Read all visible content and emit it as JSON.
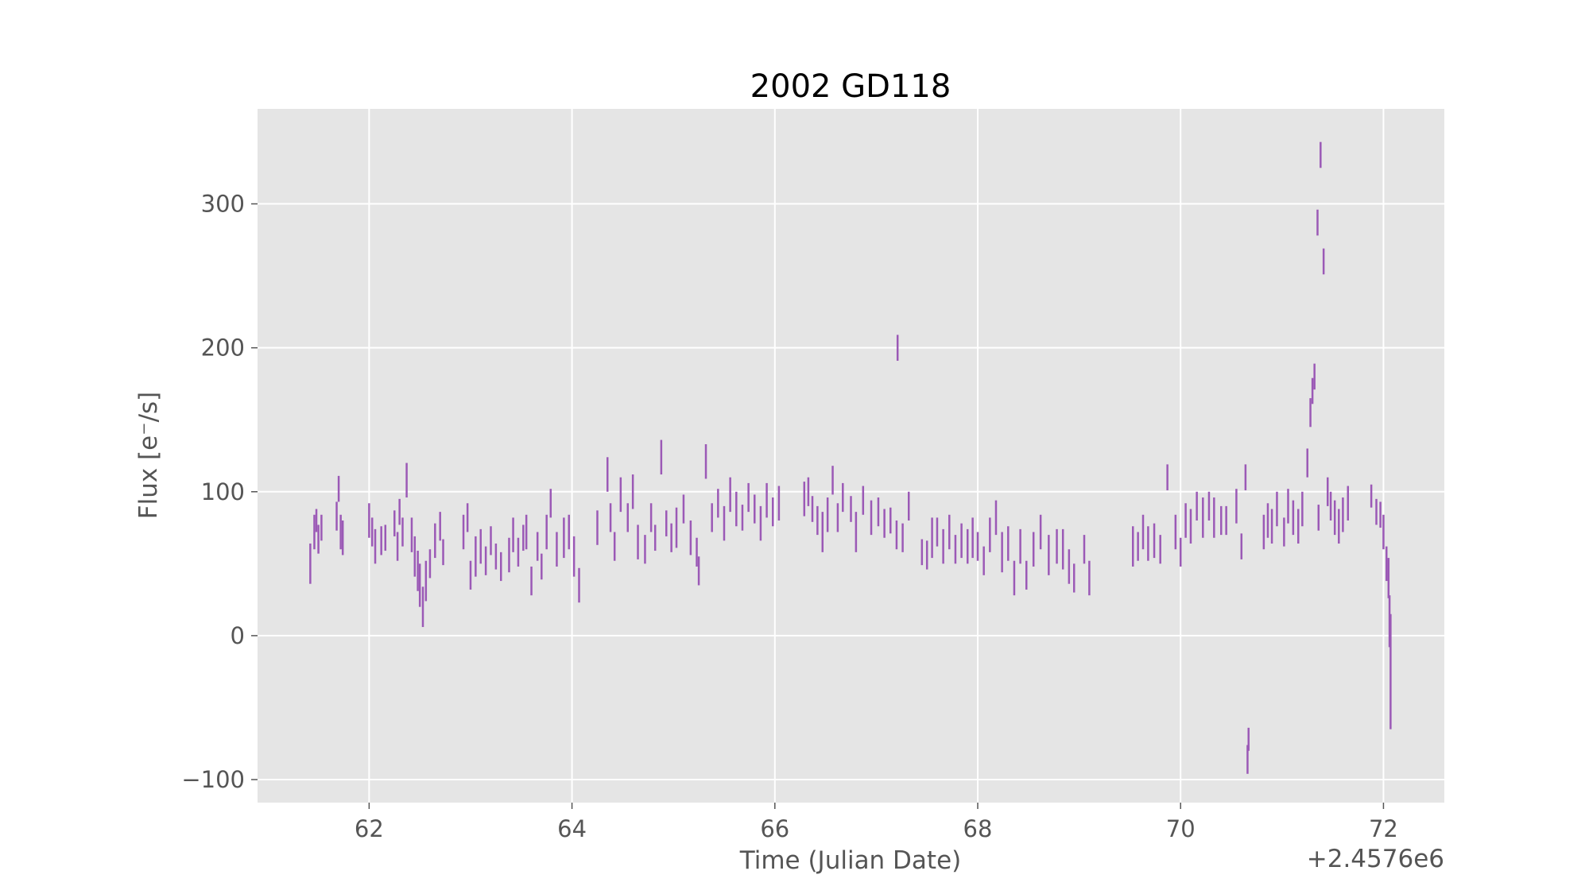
{
  "chart_data": {
    "type": "scatter",
    "title": "2002 GD118",
    "xlabel": "Time (Julian Date)",
    "ylabel": "Flux [e⁻/s]",
    "x_offset_label": "+2.4576e6",
    "x_offset": 2457600,
    "xlim": [
      2457660.9,
      2457672.6
    ],
    "ylim": [
      -116,
      366
    ],
    "xticks": [
      2457662,
      2457664,
      2457666,
      2457668,
      2457670,
      2457672
    ],
    "xtick_labels": [
      "62",
      "64",
      "66",
      "68",
      "70",
      "72"
    ],
    "yticks": [
      -100,
      0,
      100,
      200,
      300
    ],
    "ytick_labels": [
      "−100",
      "0",
      "100",
      "200",
      "300"
    ],
    "grid": true,
    "error_bars": true,
    "series": [
      {
        "color": "#9b59b6",
        "points": [
          [
            2457661.42,
            50,
            14
          ],
          [
            2457661.46,
            72,
            12
          ],
          [
            2457661.48,
            80,
            8
          ],
          [
            2457661.5,
            67,
            10
          ],
          [
            2457661.53,
            75,
            9
          ],
          [
            2457661.68,
            83,
            10
          ],
          [
            2457661.7,
            102,
            9
          ],
          [
            2457661.72,
            72,
            12
          ],
          [
            2457661.74,
            68,
            12
          ],
          [
            2457662.0,
            80,
            12
          ],
          [
            2457662.03,
            72,
            10
          ],
          [
            2457662.06,
            62,
            12
          ],
          [
            2457662.12,
            66,
            10
          ],
          [
            2457662.16,
            68,
            9
          ],
          [
            2457662.25,
            78,
            9
          ],
          [
            2457662.28,
            62,
            10
          ],
          [
            2457662.3,
            86,
            9
          ],
          [
            2457662.33,
            72,
            10
          ],
          [
            2457662.37,
            108,
            12
          ],
          [
            2457662.42,
            70,
            12
          ],
          [
            2457662.45,
            55,
            14
          ],
          [
            2457662.48,
            45,
            14
          ],
          [
            2457662.5,
            35,
            15
          ],
          [
            2457662.53,
            20,
            14
          ],
          [
            2457662.56,
            38,
            14
          ],
          [
            2457662.6,
            50,
            10
          ],
          [
            2457662.65,
            66,
            12
          ],
          [
            2457662.7,
            76,
            10
          ],
          [
            2457662.73,
            58,
            9
          ],
          [
            2457662.93,
            72,
            12
          ],
          [
            2457662.97,
            82,
            10
          ],
          [
            2457663.0,
            42,
            10
          ],
          [
            2457663.05,
            55,
            14
          ],
          [
            2457663.1,
            62,
            12
          ],
          [
            2457663.15,
            52,
            10
          ],
          [
            2457663.2,
            66,
            10
          ],
          [
            2457663.25,
            55,
            9
          ],
          [
            2457663.3,
            48,
            10
          ],
          [
            2457663.38,
            56,
            12
          ],
          [
            2457663.42,
            70,
            12
          ],
          [
            2457663.47,
            58,
            10
          ],
          [
            2457663.52,
            68,
            9
          ],
          [
            2457663.55,
            72,
            12
          ],
          [
            2457663.6,
            38,
            10
          ],
          [
            2457663.66,
            62,
            10
          ],
          [
            2457663.7,
            48,
            9
          ],
          [
            2457663.75,
            72,
            12
          ],
          [
            2457663.79,
            92,
            10
          ],
          [
            2457663.85,
            60,
            12
          ],
          [
            2457663.92,
            68,
            14
          ],
          [
            2457663.97,
            72,
            12
          ],
          [
            2457664.02,
            55,
            14
          ],
          [
            2457664.07,
            35,
            12
          ],
          [
            2457664.25,
            75,
            12
          ],
          [
            2457664.35,
            112,
            12
          ],
          [
            2457664.38,
            82,
            10
          ],
          [
            2457664.42,
            62,
            10
          ],
          [
            2457664.48,
            98,
            12
          ],
          [
            2457664.55,
            82,
            10
          ],
          [
            2457664.6,
            100,
            12
          ],
          [
            2457664.65,
            65,
            12
          ],
          [
            2457664.72,
            60,
            10
          ],
          [
            2457664.78,
            82,
            10
          ],
          [
            2457664.82,
            68,
            9
          ],
          [
            2457664.88,
            124,
            12
          ],
          [
            2457664.93,
            78,
            9
          ],
          [
            2457664.98,
            68,
            10
          ],
          [
            2457665.03,
            75,
            14
          ],
          [
            2457665.1,
            88,
            10
          ],
          [
            2457665.17,
            68,
            12
          ],
          [
            2457665.23,
            58,
            10
          ],
          [
            2457665.25,
            45,
            10
          ],
          [
            2457665.32,
            121,
            12
          ],
          [
            2457665.38,
            82,
            10
          ],
          [
            2457665.44,
            92,
            10
          ],
          [
            2457665.5,
            78,
            12
          ],
          [
            2457665.56,
            98,
            12
          ],
          [
            2457665.62,
            88,
            12
          ],
          [
            2457665.68,
            82,
            9
          ],
          [
            2457665.74,
            96,
            10
          ],
          [
            2457665.8,
            88,
            10
          ],
          [
            2457665.86,
            78,
            12
          ],
          [
            2457665.92,
            94,
            12
          ],
          [
            2457665.98,
            86,
            10
          ],
          [
            2457666.04,
            92,
            12
          ],
          [
            2457666.29,
            95,
            12
          ],
          [
            2457666.33,
            100,
            10
          ],
          [
            2457666.37,
            88,
            9
          ],
          [
            2457666.42,
            80,
            10
          ],
          [
            2457666.47,
            72,
            14
          ],
          [
            2457666.52,
            84,
            12
          ],
          [
            2457666.57,
            108,
            10
          ],
          [
            2457666.62,
            82,
            10
          ],
          [
            2457666.67,
            96,
            10
          ],
          [
            2457666.75,
            88,
            9
          ],
          [
            2457666.8,
            72,
            14
          ],
          [
            2457666.87,
            94,
            10
          ],
          [
            2457666.95,
            82,
            12
          ],
          [
            2457667.02,
            86,
            10
          ],
          [
            2457667.08,
            78,
            10
          ],
          [
            2457667.14,
            80,
            9
          ],
          [
            2457667.2,
            70,
            10
          ],
          [
            2457667.21,
            200,
            9
          ],
          [
            2457667.26,
            68,
            10
          ],
          [
            2457667.32,
            90,
            10
          ],
          [
            2457667.45,
            58,
            9
          ],
          [
            2457667.5,
            56,
            10
          ],
          [
            2457667.55,
            68,
            14
          ],
          [
            2457667.6,
            72,
            10
          ],
          [
            2457667.66,
            62,
            12
          ],
          [
            2457667.72,
            72,
            12
          ],
          [
            2457667.78,
            60,
            10
          ],
          [
            2457667.84,
            66,
            12
          ],
          [
            2457667.9,
            62,
            12
          ],
          [
            2457667.95,
            68,
            14
          ],
          [
            2457668.0,
            62,
            10
          ],
          [
            2457668.06,
            52,
            10
          ],
          [
            2457668.12,
            70,
            12
          ],
          [
            2457668.18,
            82,
            12
          ],
          [
            2457668.24,
            58,
            14
          ],
          [
            2457668.3,
            64,
            12
          ],
          [
            2457668.36,
            40,
            12
          ],
          [
            2457668.42,
            62,
            12
          ],
          [
            2457668.48,
            42,
            10
          ],
          [
            2457668.55,
            60,
            12
          ],
          [
            2457668.62,
            72,
            12
          ],
          [
            2457668.7,
            56,
            14
          ],
          [
            2457668.78,
            62,
            12
          ],
          [
            2457668.84,
            60,
            14
          ],
          [
            2457668.9,
            48,
            12
          ],
          [
            2457668.95,
            40,
            10
          ],
          [
            2457669.05,
            60,
            10
          ],
          [
            2457669.1,
            40,
            12
          ],
          [
            2457669.53,
            62,
            14
          ],
          [
            2457669.58,
            62,
            10
          ],
          [
            2457669.63,
            72,
            12
          ],
          [
            2457669.68,
            64,
            12
          ],
          [
            2457669.74,
            66,
            12
          ],
          [
            2457669.8,
            60,
            10
          ],
          [
            2457669.87,
            110,
            9
          ],
          [
            2457669.95,
            72,
            12
          ],
          [
            2457670.0,
            58,
            10
          ],
          [
            2457670.05,
            80,
            12
          ],
          [
            2457670.1,
            76,
            12
          ],
          [
            2457670.16,
            90,
            10
          ],
          [
            2457670.22,
            82,
            14
          ],
          [
            2457670.28,
            90,
            10
          ],
          [
            2457670.33,
            82,
            14
          ],
          [
            2457670.4,
            80,
            10
          ],
          [
            2457670.45,
            80,
            10
          ],
          [
            2457670.55,
            90,
            12
          ],
          [
            2457670.6,
            62,
            9
          ],
          [
            2457670.64,
            110,
            9
          ],
          [
            2457670.66,
            -86,
            10
          ],
          [
            2457670.67,
            -72,
            8
          ],
          [
            2457670.82,
            72,
            12
          ],
          [
            2457670.86,
            80,
            12
          ],
          [
            2457670.9,
            76,
            12
          ],
          [
            2457670.95,
            88,
            12
          ],
          [
            2457671.02,
            72,
            10
          ],
          [
            2457671.06,
            90,
            12
          ],
          [
            2457671.11,
            82,
            12
          ],
          [
            2457671.16,
            76,
            12
          ],
          [
            2457671.2,
            88,
            12
          ],
          [
            2457671.25,
            120,
            10
          ],
          [
            2457671.28,
            155,
            10
          ],
          [
            2457671.3,
            170,
            9
          ],
          [
            2457671.32,
            180,
            9
          ],
          [
            2457671.35,
            287,
            9
          ],
          [
            2457671.38,
            334,
            9
          ],
          [
            2457671.41,
            260,
            9
          ],
          [
            2457671.36,
            82,
            9
          ],
          [
            2457671.45,
            100,
            10
          ],
          [
            2457671.48,
            90,
            10
          ],
          [
            2457671.52,
            82,
            12
          ],
          [
            2457671.56,
            76,
            12
          ],
          [
            2457671.6,
            84,
            12
          ],
          [
            2457671.65,
            92,
            12
          ],
          [
            2457671.88,
            97,
            8
          ],
          [
            2457671.93,
            86,
            9
          ],
          [
            2457671.97,
            84,
            9
          ],
          [
            2457672.0,
            72,
            12
          ],
          [
            2457672.03,
            50,
            12
          ],
          [
            2457672.05,
            40,
            14
          ],
          [
            2457672.06,
            10,
            18
          ],
          [
            2457672.07,
            -25,
            40
          ]
        ]
      }
    ]
  }
}
